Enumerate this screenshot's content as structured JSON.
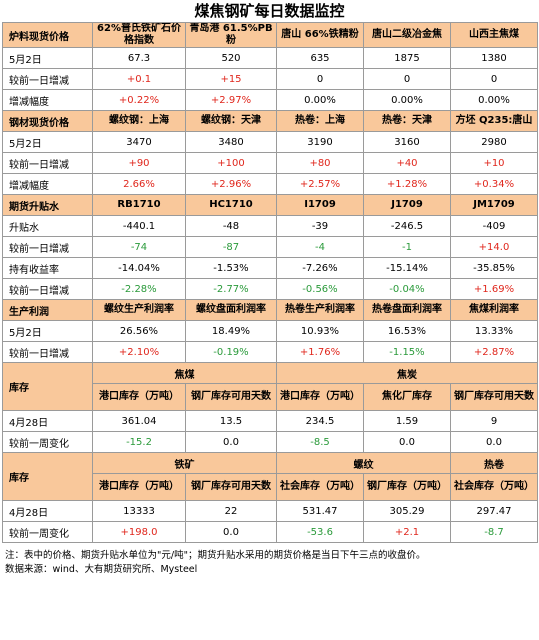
{
  "title": "煤焦钢矿每日数据监控",
  "sections": [
    {
      "header": [
        "炉料现货价格",
        "62%普氏铁矿石价格指数",
        "青岛港 61.5%PB粉",
        "唐山 66%铁精粉",
        "唐山二级冶金焦",
        "山西主焦煤"
      ],
      "rows": [
        {
          "label": "5月2日",
          "cells": [
            {
              "v": "67.3",
              "c": ""
            },
            {
              "v": "520",
              "c": ""
            },
            {
              "v": "635",
              "c": ""
            },
            {
              "v": "1875",
              "c": ""
            },
            {
              "v": "1380",
              "c": ""
            }
          ]
        },
        {
          "label": "较前一日增减",
          "cells": [
            {
              "v": "+0.1",
              "c": "red"
            },
            {
              "v": "+15",
              "c": "red"
            },
            {
              "v": "0",
              "c": ""
            },
            {
              "v": "0",
              "c": ""
            },
            {
              "v": "0",
              "c": ""
            }
          ]
        },
        {
          "label": "增减幅度",
          "cells": [
            {
              "v": "+0.22%",
              "c": "red"
            },
            {
              "v": "+2.97%",
              "c": "red"
            },
            {
              "v": "0.00%",
              "c": ""
            },
            {
              "v": "0.00%",
              "c": ""
            },
            {
              "v": "0.00%",
              "c": ""
            }
          ]
        }
      ]
    },
    {
      "header": [
        "钢材现货价格",
        "螺纹钢：上海",
        "螺纹钢：天津",
        "热卷：上海",
        "热卷：天津",
        "方坯 Q235:唐山"
      ],
      "rows": [
        {
          "label": "5月2日",
          "cells": [
            {
              "v": "3470",
              "c": ""
            },
            {
              "v": "3480",
              "c": ""
            },
            {
              "v": "3190",
              "c": ""
            },
            {
              "v": "3160",
              "c": ""
            },
            {
              "v": "2980",
              "c": ""
            }
          ]
        },
        {
          "label": "较前一日增减",
          "cells": [
            {
              "v": "+90",
              "c": "red"
            },
            {
              "v": "+100",
              "c": "red"
            },
            {
              "v": "+80",
              "c": "red"
            },
            {
              "v": "+40",
              "c": "red"
            },
            {
              "v": "+10",
              "c": "red"
            }
          ]
        },
        {
          "label": "增减幅度",
          "cells": [
            {
              "v": "2.66%",
              "c": "red"
            },
            {
              "v": "+2.96%",
              "c": "red"
            },
            {
              "v": "+2.57%",
              "c": "red"
            },
            {
              "v": "+1.28%",
              "c": "red"
            },
            {
              "v": "+0.34%",
              "c": "red"
            }
          ]
        }
      ]
    },
    {
      "header": [
        "期货升贴水",
        "RB1710",
        "HC1710",
        "I1709",
        "J1709",
        "JM1709"
      ],
      "rows": [
        {
          "label": "升贴水",
          "cells": [
            {
              "v": "-440.1",
              "c": ""
            },
            {
              "v": "-48",
              "c": ""
            },
            {
              "v": "-39",
              "c": ""
            },
            {
              "v": "-246.5",
              "c": ""
            },
            {
              "v": "-409",
              "c": ""
            }
          ]
        },
        {
          "label": "较前一日增减",
          "cells": [
            {
              "v": "-74",
              "c": "green"
            },
            {
              "v": "-87",
              "c": "green"
            },
            {
              "v": "-4",
              "c": "green"
            },
            {
              "v": "-1",
              "c": "green"
            },
            {
              "v": "+14.0",
              "c": "red"
            }
          ]
        },
        {
          "label": "持有收益率",
          "cells": [
            {
              "v": "-14.04%",
              "c": ""
            },
            {
              "v": "-1.53%",
              "c": ""
            },
            {
              "v": "-7.26%",
              "c": ""
            },
            {
              "v": "-15.14%",
              "c": ""
            },
            {
              "v": "-35.85%",
              "c": ""
            }
          ]
        },
        {
          "label": "较前一日增减",
          "cells": [
            {
              "v": "-2.28%",
              "c": "green"
            },
            {
              "v": "-2.77%",
              "c": "green"
            },
            {
              "v": "-0.56%",
              "c": "green"
            },
            {
              "v": "-0.04%",
              "c": "green"
            },
            {
              "v": "+1.69%",
              "c": "red"
            }
          ]
        }
      ]
    },
    {
      "header": [
        "生产利润",
        "螺纹生产利润率",
        "螺纹盘面利润率",
        "热卷生产利润率",
        "热卷盘面利润率",
        "焦煤利润率"
      ],
      "rows": [
        {
          "label": "5月2日",
          "cells": [
            {
              "v": "26.56%",
              "c": ""
            },
            {
              "v": "18.49%",
              "c": ""
            },
            {
              "v": "10.93%",
              "c": ""
            },
            {
              "v": "16.53%",
              "c": ""
            },
            {
              "v": "13.33%",
              "c": ""
            }
          ]
        },
        {
          "label": "较前一日增减",
          "cells": [
            {
              "v": "+2.10%",
              "c": "red"
            },
            {
              "v": "-0.19%",
              "c": "green"
            },
            {
              "v": "+1.76%",
              "c": "red"
            },
            {
              "v": "-1.15%",
              "c": "green"
            },
            {
              "v": "+2.87%",
              "c": "red"
            }
          ]
        }
      ]
    }
  ],
  "inventory1": {
    "label": "库存",
    "group1": "焦煤",
    "group2": "焦炭",
    "sub": [
      "港口库存（万吨）",
      "钢厂库存可用天数",
      "港口库存（万吨）",
      "焦化厂库存",
      "钢厂库存可用天数"
    ],
    "rows": [
      {
        "label": "4月28日",
        "cells": [
          {
            "v": "361.04",
            "c": ""
          },
          {
            "v": "13.5",
            "c": ""
          },
          {
            "v": "234.5",
            "c": ""
          },
          {
            "v": "1.59",
            "c": ""
          },
          {
            "v": "9",
            "c": ""
          }
        ]
      },
      {
        "label": "较前一周变化",
        "cells": [
          {
            "v": "-15.2",
            "c": "green"
          },
          {
            "v": "0.0",
            "c": ""
          },
          {
            "v": "-8.5",
            "c": "green"
          },
          {
            "v": "0.0",
            "c": ""
          },
          {
            "v": "0.0",
            "c": ""
          }
        ]
      }
    ]
  },
  "inventory2": {
    "label": "库存",
    "group1": "铁矿",
    "group2": "螺纹",
    "group3": "热卷",
    "sub": [
      "港口库存（万吨）",
      "钢厂库存可用天数",
      "社会库存（万吨）",
      "钢厂库存（万吨）",
      "社会库存（万吨）"
    ],
    "rows": [
      {
        "label": "4月28日",
        "cells": [
          {
            "v": "13333",
            "c": ""
          },
          {
            "v": "22",
            "c": ""
          },
          {
            "v": "531.47",
            "c": ""
          },
          {
            "v": "305.29",
            "c": ""
          },
          {
            "v": "297.47",
            "c": ""
          }
        ]
      },
      {
        "label": "较前一周变化",
        "cells": [
          {
            "v": "+198.0",
            "c": "red"
          },
          {
            "v": "0.0",
            "c": ""
          },
          {
            "v": "-53.6",
            "c": "green"
          },
          {
            "v": "+2.1",
            "c": "red"
          },
          {
            "v": "-8.7",
            "c": "green"
          }
        ]
      }
    ]
  },
  "note": "注：表中的价格、期货升贴水单位为\"元/吨\"；期货升贴水采用的期货价格是当日下午三点的收盘价。",
  "source": "数据来源：wind、大有期货研究所、Mysteel"
}
